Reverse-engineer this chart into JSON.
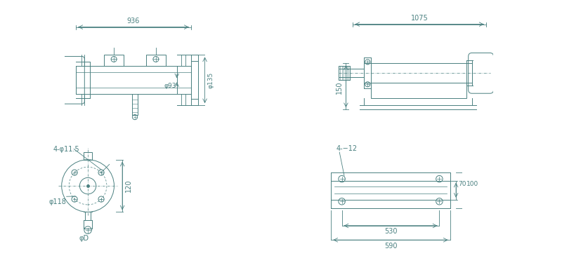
{
  "bg_color": "#ffffff",
  "line_color": "#4a8080",
  "text_color": "#4a8080",
  "fig_width": 8.0,
  "fig_height": 3.68,
  "annotations": {
    "top_left_width": "936",
    "top_right_width": "1075",
    "bottom_left_holes": "4-φ11.5",
    "bottom_left_dia": "φ118",
    "bottom_left_height": "120",
    "bottom_left_d": "φD",
    "top_left_d93": "φ93",
    "top_left_d135": "φ135",
    "top_right_height": "150",
    "bottom_right_holes": "4-−12",
    "bottom_right_dim1": "70",
    "bottom_right_dim2": "100",
    "bottom_right_w1": "530",
    "bottom_right_w2": "590"
  }
}
